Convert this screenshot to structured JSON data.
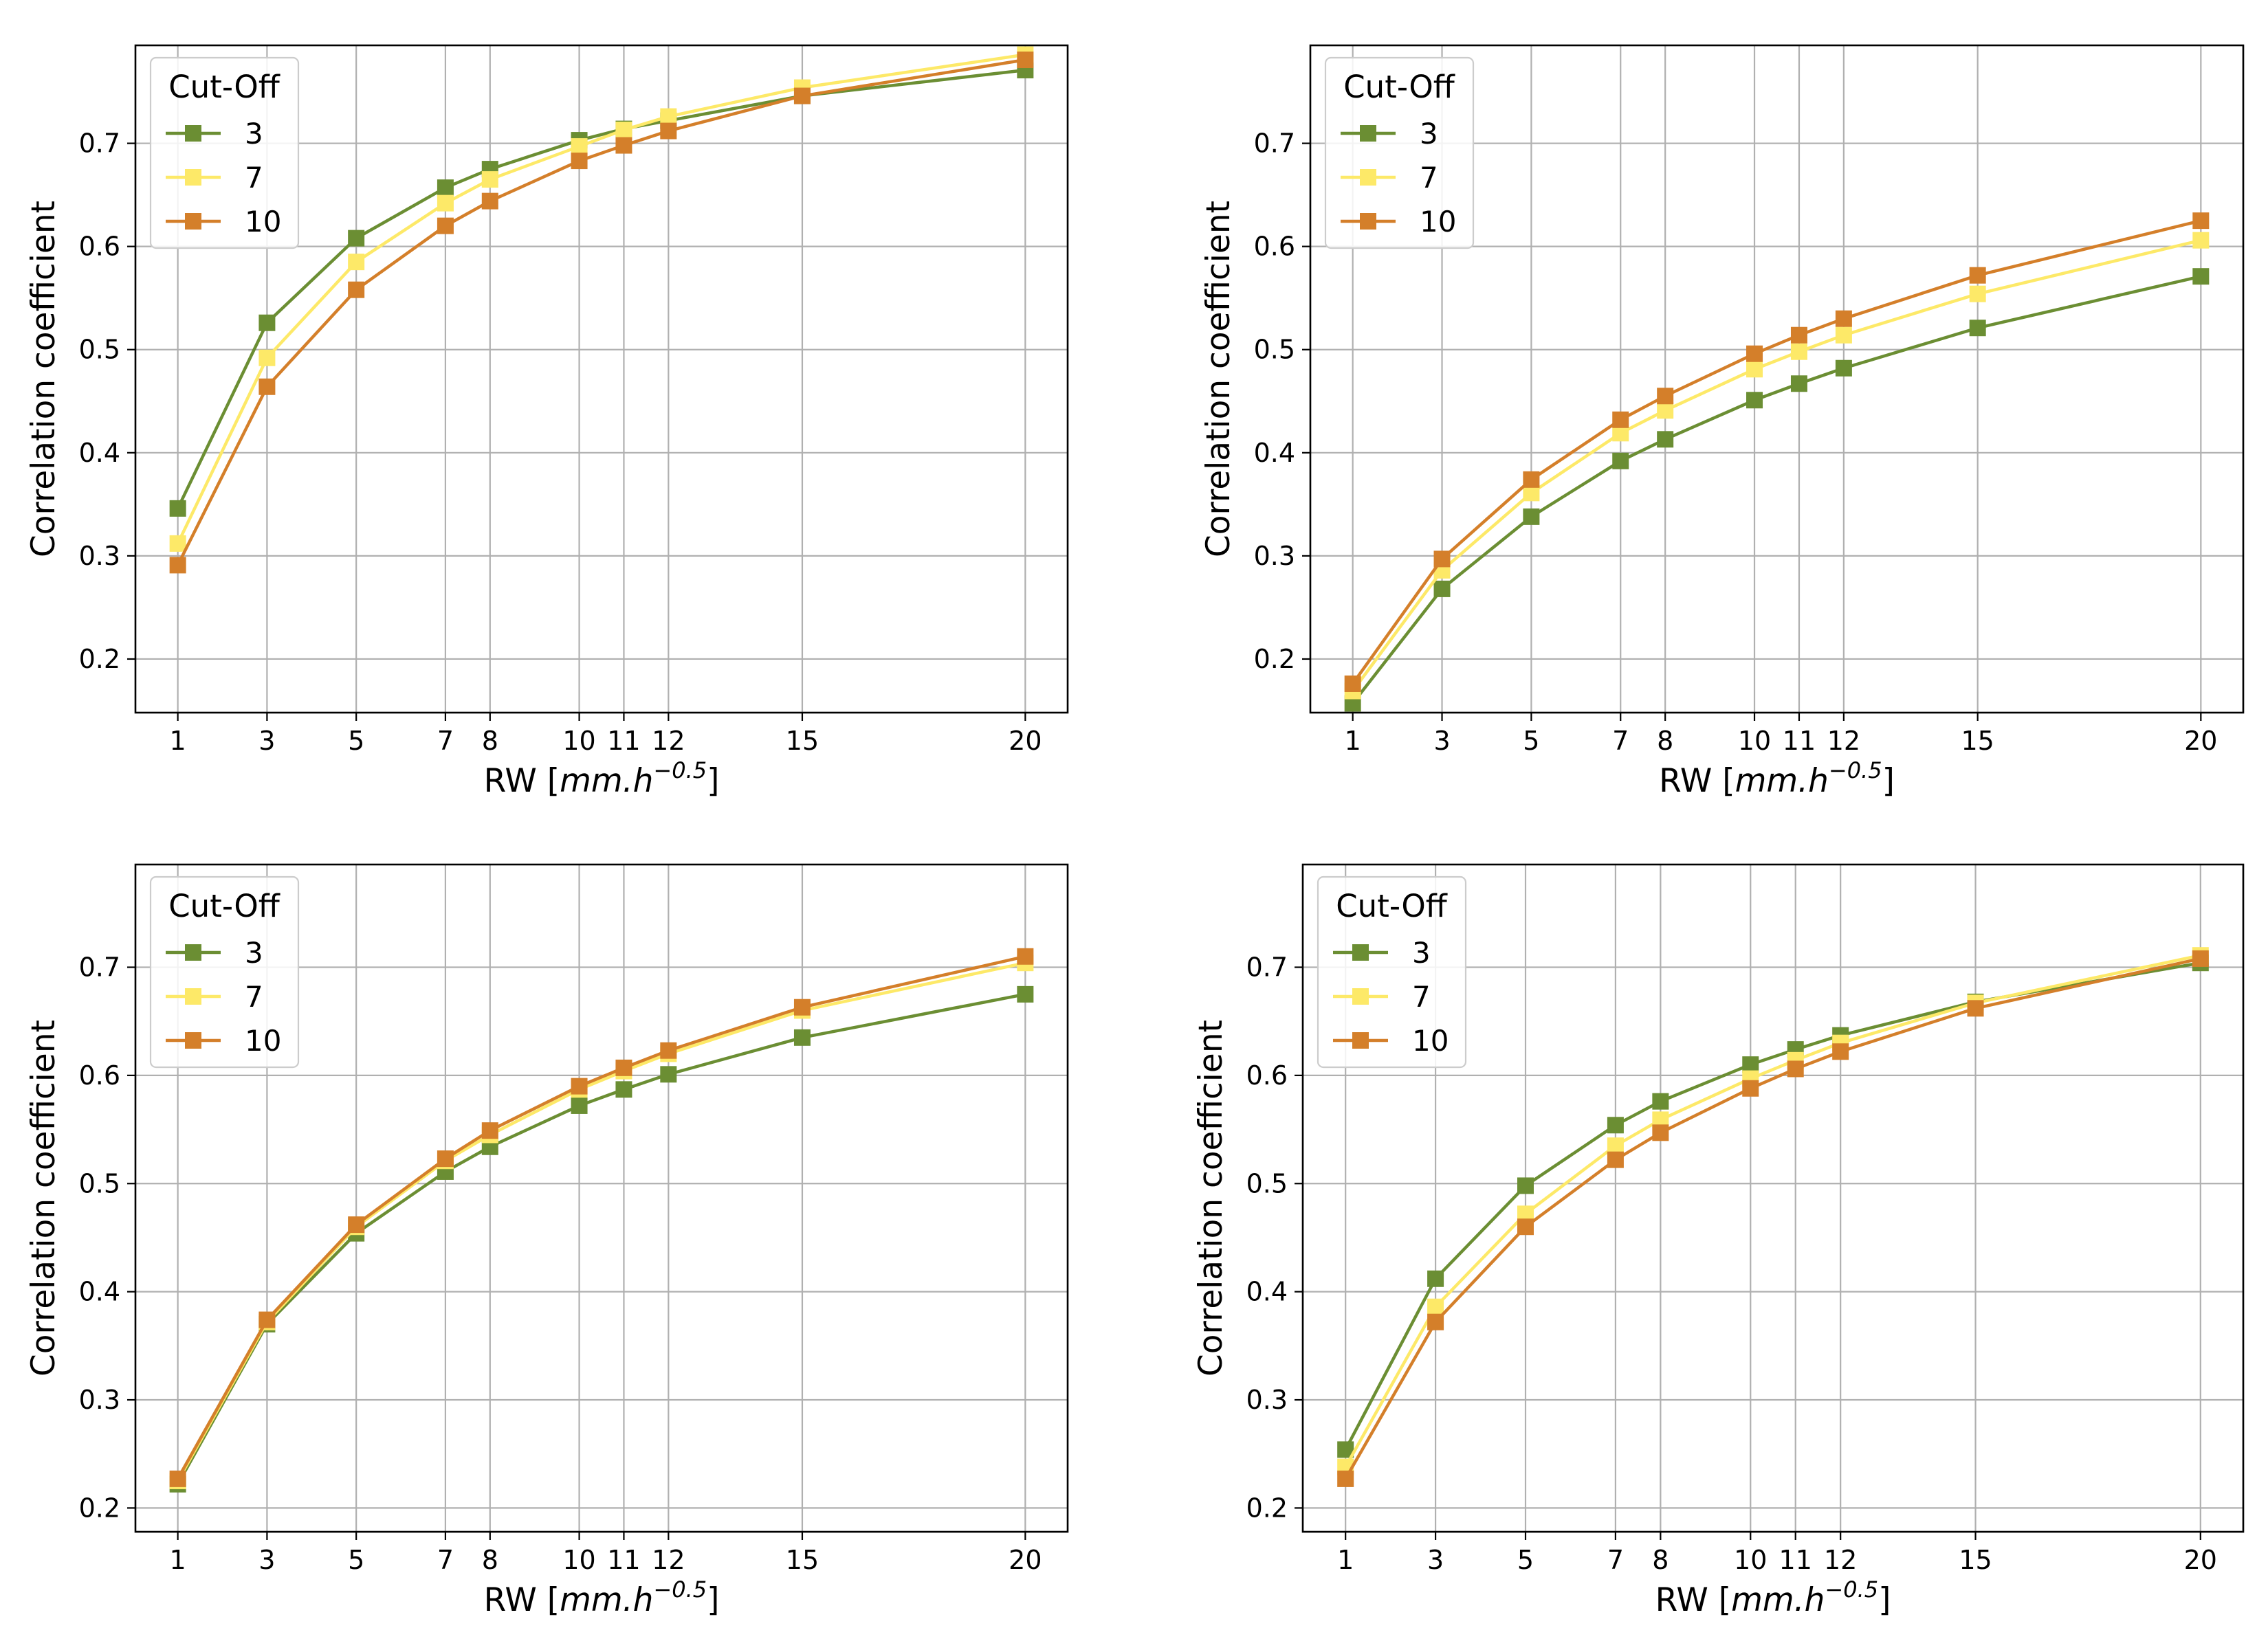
{
  "figure": {
    "legend_title": "Cut-Off",
    "colors": {
      "3": "#6b8e33",
      "7": "#fde968",
      "10": "#d47f2a"
    }
  },
  "chart_data": [
    {
      "type": "line",
      "panel": "top-left",
      "xlabel": "RW [mm.h^-0.5]",
      "xlabel_parts": {
        "prefix": "RW [",
        "unit": "mm.h",
        "sup": "−0.5",
        "suffix": "]"
      },
      "ylabel": "Correlation coefficient",
      "x": [
        1,
        3,
        5,
        7,
        8,
        10,
        11,
        12,
        15,
        20
      ],
      "xticks": [
        1,
        3,
        5,
        7,
        8,
        10,
        11,
        12,
        15,
        20
      ],
      "xlim": [
        0.05,
        20.95
      ],
      "ylim": [
        0.148,
        0.795
      ],
      "yticks": [
        0.2,
        0.3,
        0.4,
        0.5,
        0.6,
        0.7
      ],
      "yticklabels": [
        "0.2",
        "0.3",
        "0.4",
        "0.5",
        "0.6",
        "0.7"
      ],
      "grid": true,
      "legend_title": "Cut-Off",
      "legend_position": "top-left",
      "series": [
        {
          "name": "3",
          "color": "#6b8e33",
          "values": [
            0.346,
            0.526,
            0.608,
            0.657,
            0.675,
            0.703,
            0.714,
            0.722,
            0.746,
            0.771
          ]
        },
        {
          "name": "7",
          "color": "#fde968",
          "values": [
            0.312,
            0.492,
            0.585,
            0.642,
            0.665,
            0.697,
            0.713,
            0.726,
            0.754,
            0.786
          ]
        },
        {
          "name": "10",
          "color": "#d47f2a",
          "values": [
            0.291,
            0.464,
            0.558,
            0.62,
            0.644,
            0.683,
            0.698,
            0.712,
            0.746,
            0.781
          ]
        }
      ]
    },
    {
      "type": "line",
      "panel": "top-right",
      "xlabel": "RW [mm.h^-0.5]",
      "xlabel_parts": {
        "prefix": "RW [",
        "unit": "mm.h",
        "sup": "−0.5",
        "suffix": "]"
      },
      "ylabel": "Correlation coefficient",
      "x": [
        1,
        3,
        5,
        7,
        8,
        10,
        11,
        12,
        15,
        20
      ],
      "xticks": [
        1,
        3,
        5,
        7,
        8,
        10,
        11,
        12,
        15,
        20
      ],
      "xlim": [
        0.05,
        20.95
      ],
      "ylim": [
        0.148,
        0.795
      ],
      "yticks": [
        0.2,
        0.3,
        0.4,
        0.5,
        0.6,
        0.7
      ],
      "yticklabels": [
        "0.2",
        "0.3",
        "0.4",
        "0.5",
        "0.6",
        "0.7"
      ],
      "grid": true,
      "legend_title": "Cut-Off",
      "legend_position": "top-left",
      "series": [
        {
          "name": "3",
          "color": "#6b8e33",
          "values": [
            0.157,
            0.268,
            0.338,
            0.392,
            0.413,
            0.451,
            0.467,
            0.482,
            0.521,
            0.571
          ]
        },
        {
          "name": "7",
          "color": "#fde968",
          "values": [
            0.169,
            0.286,
            0.361,
            0.419,
            0.441,
            0.481,
            0.498,
            0.514,
            0.554,
            0.606
          ]
        },
        {
          "name": "10",
          "color": "#d47f2a",
          "values": [
            0.176,
            0.297,
            0.374,
            0.432,
            0.455,
            0.496,
            0.514,
            0.53,
            0.572,
            0.625
          ]
        }
      ]
    },
    {
      "type": "line",
      "panel": "bottom-left",
      "xlabel": "RW [mm.h^-0.5]",
      "xlabel_parts": {
        "prefix": "RW [",
        "unit": "mm.h",
        "sup": "−0.5",
        "suffix": "]"
      },
      "ylabel": "Correlation coefficient",
      "x": [
        1,
        3,
        5,
        7,
        8,
        10,
        11,
        12,
        15,
        20
      ],
      "xticks": [
        1,
        3,
        5,
        7,
        8,
        10,
        11,
        12,
        15,
        20
      ],
      "xlim": [
        0.05,
        20.95
      ],
      "ylim": [
        0.178,
        0.795
      ],
      "yticks": [
        0.2,
        0.3,
        0.4,
        0.5,
        0.6,
        0.7
      ],
      "yticklabels": [
        "0.2",
        "0.3",
        "0.4",
        "0.5",
        "0.6",
        "0.7"
      ],
      "grid": true,
      "legend_title": "Cut-Off",
      "legend_position": "top-left",
      "series": [
        {
          "name": "3",
          "color": "#6b8e33",
          "values": [
            0.222,
            0.37,
            0.454,
            0.511,
            0.534,
            0.572,
            0.587,
            0.601,
            0.635,
            0.675
          ]
        },
        {
          "name": "7",
          "color": "#fde968",
          "values": [
            0.225,
            0.372,
            0.46,
            0.521,
            0.545,
            0.587,
            0.604,
            0.62,
            0.66,
            0.704
          ]
        },
        {
          "name": "10",
          "color": "#d47f2a",
          "values": [
            0.227,
            0.374,
            0.462,
            0.523,
            0.549,
            0.59,
            0.607,
            0.623,
            0.663,
            0.71
          ]
        }
      ]
    },
    {
      "type": "line",
      "panel": "bottom-right",
      "xlabel": "RW [mm.h^-0.5]",
      "xlabel_parts": {
        "prefix": "RW [",
        "unit": "mm.h",
        "sup": "−0.5",
        "suffix": "]"
      },
      "ylabel": "Correlation coefficient",
      "x": [
        1,
        3,
        5,
        7,
        8,
        10,
        11,
        12,
        15,
        20
      ],
      "xticks": [
        1,
        3,
        5,
        7,
        8,
        10,
        11,
        12,
        15,
        20
      ],
      "xlim": [
        0.05,
        20.95
      ],
      "ylim": [
        0.178,
        0.795
      ],
      "yticks": [
        0.2,
        0.3,
        0.4,
        0.5,
        0.6,
        0.7
      ],
      "yticklabels": [
        "0.2",
        "0.3",
        "0.4",
        "0.5",
        "0.6",
        "0.7"
      ],
      "grid": true,
      "legend_title": "Cut-Off",
      "legend_position": "top-left",
      "series": [
        {
          "name": "3",
          "color": "#6b8e33",
          "values": [
            0.254,
            0.412,
            0.498,
            0.554,
            0.576,
            0.61,
            0.624,
            0.637,
            0.668,
            0.704
          ]
        },
        {
          "name": "7",
          "color": "#fde968",
          "values": [
            0.238,
            0.386,
            0.472,
            0.535,
            0.559,
            0.597,
            0.614,
            0.63,
            0.667,
            0.711
          ]
        },
        {
          "name": "10",
          "color": "#d47f2a",
          "values": [
            0.227,
            0.372,
            0.46,
            0.522,
            0.547,
            0.588,
            0.606,
            0.622,
            0.662,
            0.708
          ]
        }
      ]
    }
  ]
}
